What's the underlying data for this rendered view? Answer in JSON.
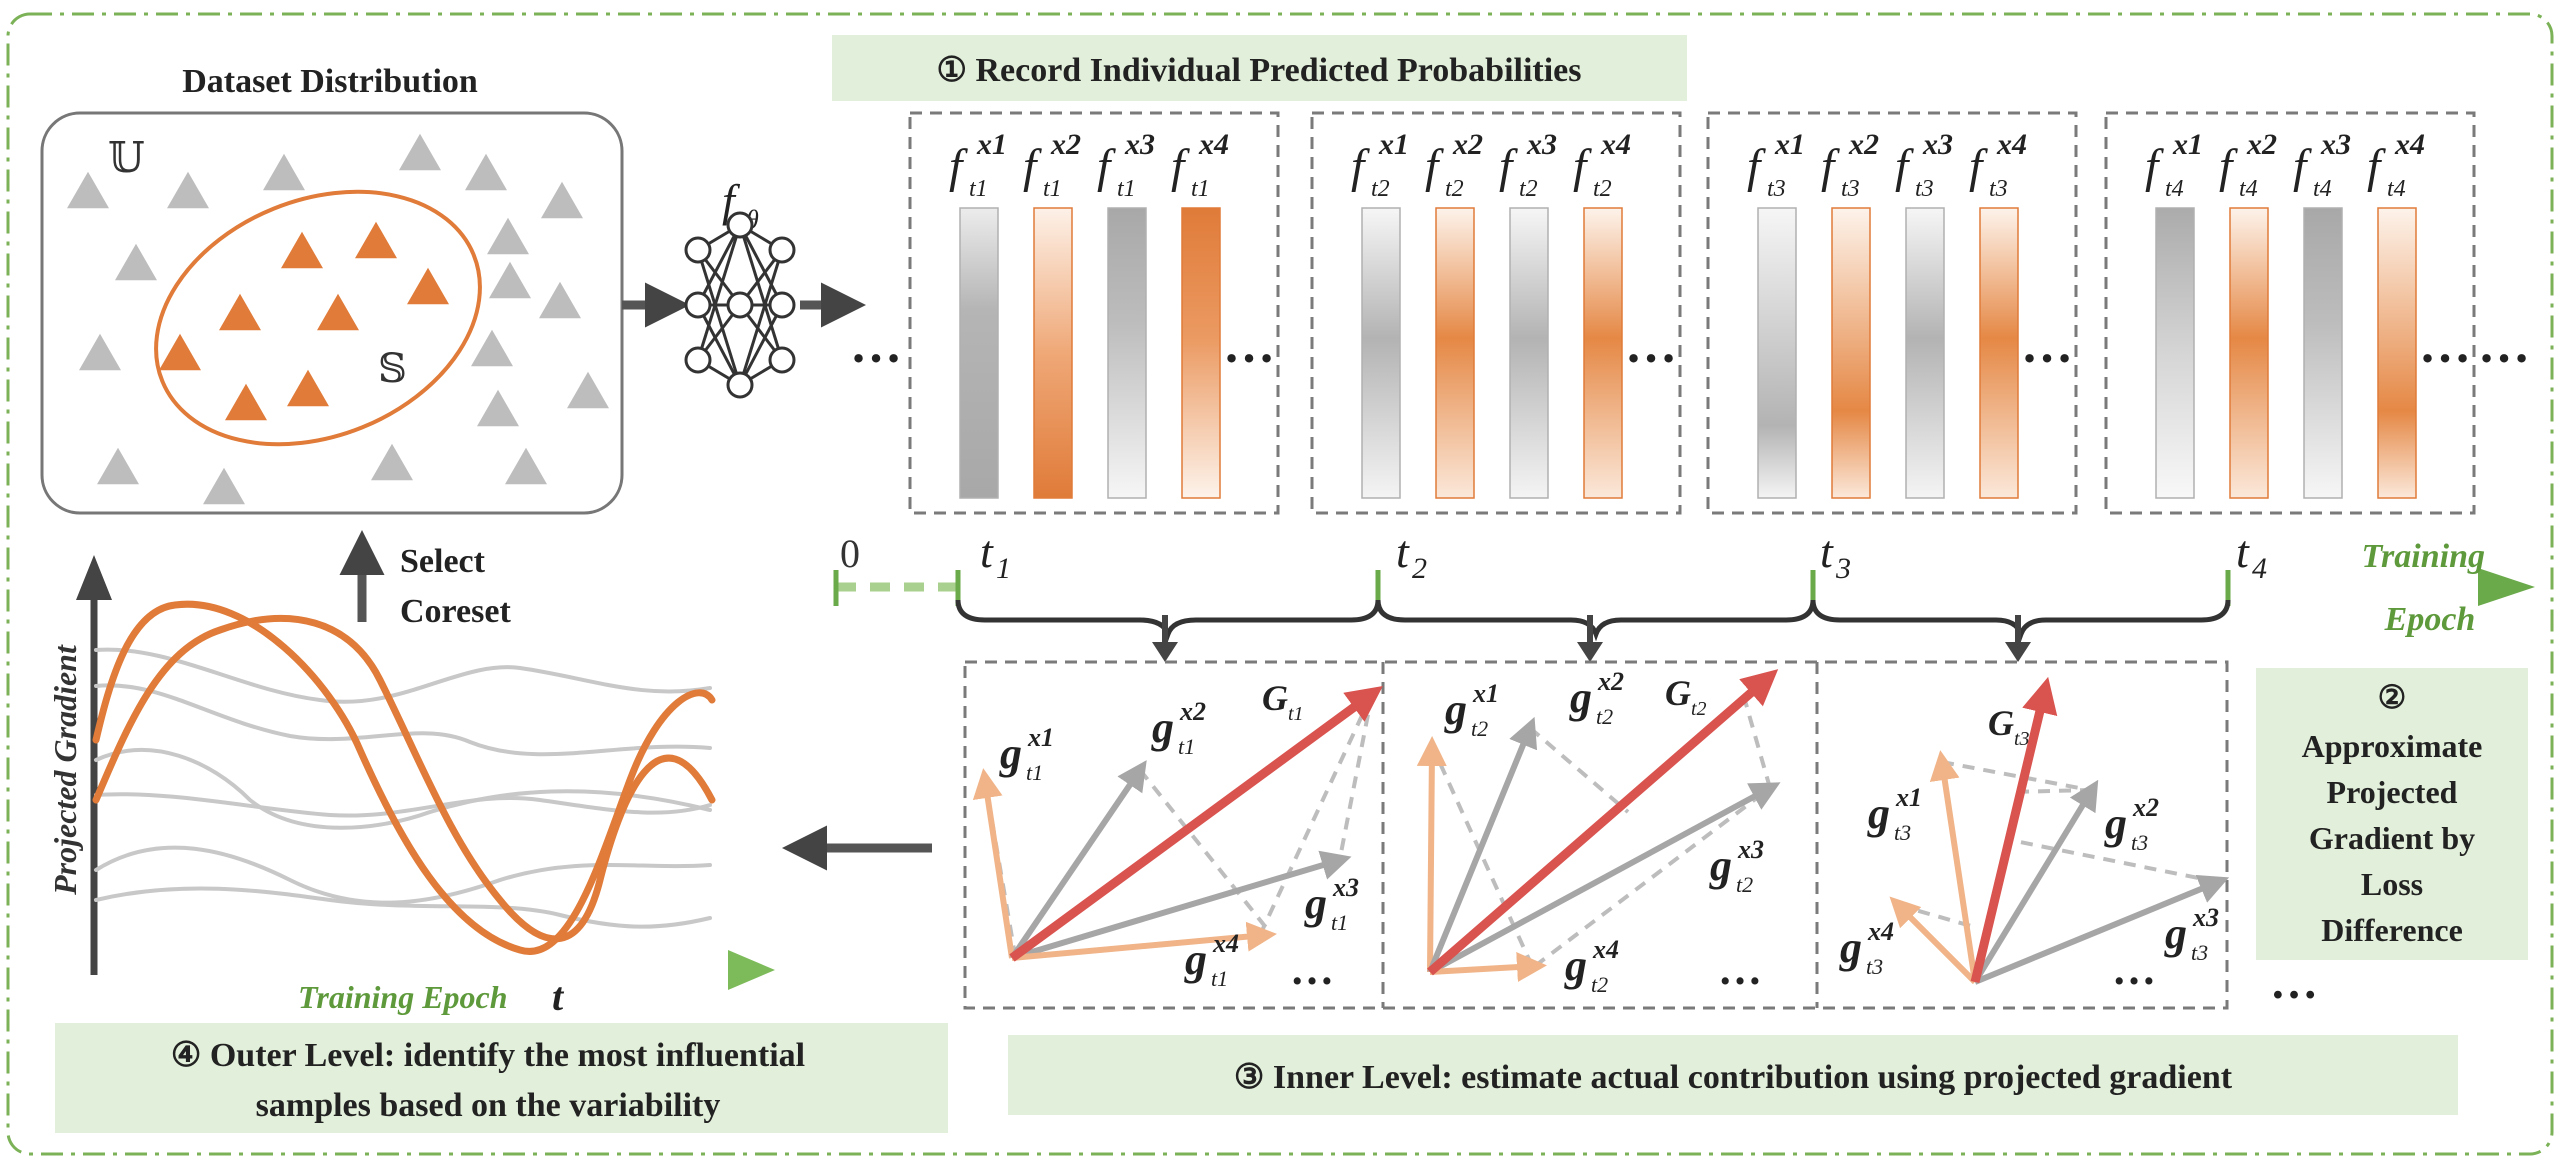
{
  "dataset": {
    "title": "Dataset Distribution",
    "universe_symbol": "𝕌",
    "subset_symbol": "𝕊"
  },
  "model_label": "f",
  "model_label_sub": "θ",
  "select_coreset": [
    "Select",
    "Coreset"
  ],
  "step1": "① Record Individual Predicted Probabilities",
  "step2": [
    "②",
    "Approximate",
    "Projected",
    "Gradient by",
    "Loss",
    "Difference"
  ],
  "step3": "③  Inner Level: estimate actual contribution using projected gradient",
  "step4": [
    "④  Outer Level: identify the most influential",
    "samples based on the variability"
  ],
  "timeline": {
    "zero": "0",
    "ticks": [
      "t",
      "t",
      "t",
      "t"
    ],
    "tick_subs": [
      "1",
      "2",
      "3",
      "4"
    ],
    "label": [
      "Training",
      "Epoch"
    ]
  },
  "prob_panels": [
    {
      "t": "1",
      "bars": [
        "gray-dark",
        "orange-up",
        "gray-down",
        "orange-down"
      ]
    },
    {
      "t": "2",
      "bars": [
        "gray-mid",
        "orange-mid",
        "gray-mid",
        "orange-mid"
      ]
    },
    {
      "t": "3",
      "bars": [
        "gray-low",
        "orange-low",
        "gray-mid",
        "orange-mid"
      ]
    },
    {
      "t": "4",
      "bars": [
        "gray-up",
        "orange-mid",
        "gray-down",
        "orange-low"
      ]
    }
  ],
  "prob_labels": {
    "f": "f",
    "x": "x",
    "indices": [
      "1",
      "2",
      "3",
      "4"
    ]
  },
  "ellipsis": "…",
  "grad_panels": [
    {
      "t": "1",
      "G": "G",
      "g": "g",
      "x": "x"
    },
    {
      "t": "2",
      "G": "G",
      "g": "g",
      "x": "x"
    },
    {
      "t": "3",
      "G": "G",
      "g": "g",
      "x": "x"
    }
  ],
  "plot": {
    "ylabel": "Projected Gradient",
    "xlabel": "Training Epoch",
    "xlabel_var": "t"
  },
  "colors": {
    "orange": "#e07b39",
    "light_orange": "#f0b488",
    "gray": "#a6a6a6",
    "red": "#d9534f",
    "green": "#6aaa4a",
    "green_box": "#e2efda",
    "dash_border": "#7a7a7a"
  }
}
